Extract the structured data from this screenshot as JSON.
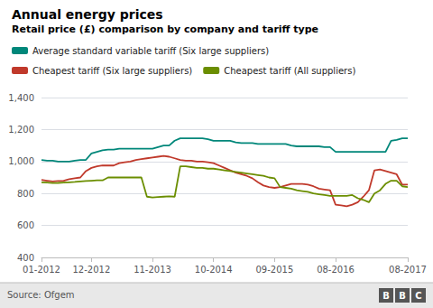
{
  "chart_data": {
    "type": "line",
    "title": "Annual energy prices",
    "subtitle": "Retail price (£) comparison by company and tariff type",
    "source": "Source: Ofgem",
    "annotations": [
      "B",
      "B",
      "C"
    ],
    "x": [
      0,
      1,
      2,
      3,
      4,
      5,
      6,
      7,
      8,
      9,
      10,
      11,
      12,
      13,
      14,
      15,
      16,
      17,
      18,
      19,
      20,
      21,
      22,
      23,
      24,
      25,
      26,
      27,
      28,
      29,
      30,
      31,
      32,
      33,
      34,
      35,
      36,
      37,
      38,
      39,
      40,
      41,
      42,
      43,
      44,
      45,
      46,
      47,
      48,
      49,
      50,
      51,
      52,
      53,
      54,
      55,
      56,
      57,
      58,
      59,
      60,
      61,
      62,
      63,
      64,
      65,
      66
    ],
    "xlim": [
      0,
      66
    ],
    "xticks": [
      {
        "value": 0,
        "label": "01-2012"
      },
      {
        "value": 9,
        "label": "12-2012"
      },
      {
        "value": 20,
        "label": "11-2013"
      },
      {
        "value": 31,
        "label": "10-2014"
      },
      {
        "value": 42,
        "label": "09-2015"
      },
      {
        "value": 53,
        "label": "08-2016"
      },
      {
        "value": 66,
        "label": "08-2017"
      }
    ],
    "ylim": [
      400,
      1400
    ],
    "yticks": [
      400,
      600,
      800,
      {
        "value": 1000,
        "label": "1,000"
      },
      {
        "value": 1200,
        "label": "1,200"
      },
      {
        "value": 1400,
        "label": "1,400"
      }
    ],
    "grid": true,
    "legend": "upper left",
    "series": [
      {
        "name": "Average standard variable tariff (Six large suppliers)",
        "color": "#00877A",
        "values": [
          1010,
          1005,
          1005,
          1000,
          1000,
          1000,
          1005,
          1010,
          1010,
          1050,
          1060,
          1070,
          1075,
          1075,
          1080,
          1080,
          1080,
          1080,
          1080,
          1080,
          1080,
          1090,
          1100,
          1100,
          1130,
          1145,
          1145,
          1145,
          1145,
          1145,
          1140,
          1130,
          1130,
          1130,
          1130,
          1120,
          1115,
          1115,
          1115,
          1110,
          1110,
          1110,
          1110,
          1110,
          1110,
          1100,
          1095,
          1095,
          1095,
          1095,
          1095,
          1090,
          1090,
          1060,
          1060,
          1060,
          1060,
          1060,
          1060,
          1060,
          1060,
          1060,
          1060,
          1130,
          1135,
          1145,
          1145
        ]
      },
      {
        "name": "Cheapest tariff (Six large suppliers)",
        "color": "#C0392B",
        "values": [
          885,
          880,
          875,
          878,
          880,
          890,
          895,
          900,
          940,
          960,
          970,
          975,
          975,
          975,
          990,
          995,
          1000,
          1010,
          1015,
          1020,
          1025,
          1030,
          1035,
          1030,
          1020,
          1010,
          1005,
          1005,
          1000,
          1000,
          995,
          990,
          975,
          960,
          945,
          930,
          920,
          910,
          895,
          870,
          850,
          840,
          835,
          840,
          850,
          860,
          860,
          860,
          855,
          845,
          830,
          825,
          820,
          730,
          725,
          720,
          730,
          745,
          780,
          820,
          945,
          950,
          940,
          930,
          920,
          855,
          855
        ]
      },
      {
        "name": "Cheapest tariff (All suppliers)",
        "color": "#6B8E00",
        "values": [
          870,
          868,
          865,
          866,
          868,
          870,
          872,
          875,
          878,
          880,
          882,
          882,
          900,
          900,
          900,
          900,
          900,
          900,
          900,
          780,
          775,
          778,
          780,
          782,
          780,
          970,
          970,
          965,
          960,
          960,
          955,
          955,
          950,
          945,
          940,
          935,
          930,
          925,
          920,
          915,
          910,
          900,
          895,
          840,
          835,
          830,
          820,
          815,
          810,
          800,
          795,
          790,
          785,
          785,
          785,
          785,
          790,
          770,
          760,
          745,
          800,
          820,
          860,
          880,
          880,
          845,
          840
        ]
      }
    ]
  }
}
